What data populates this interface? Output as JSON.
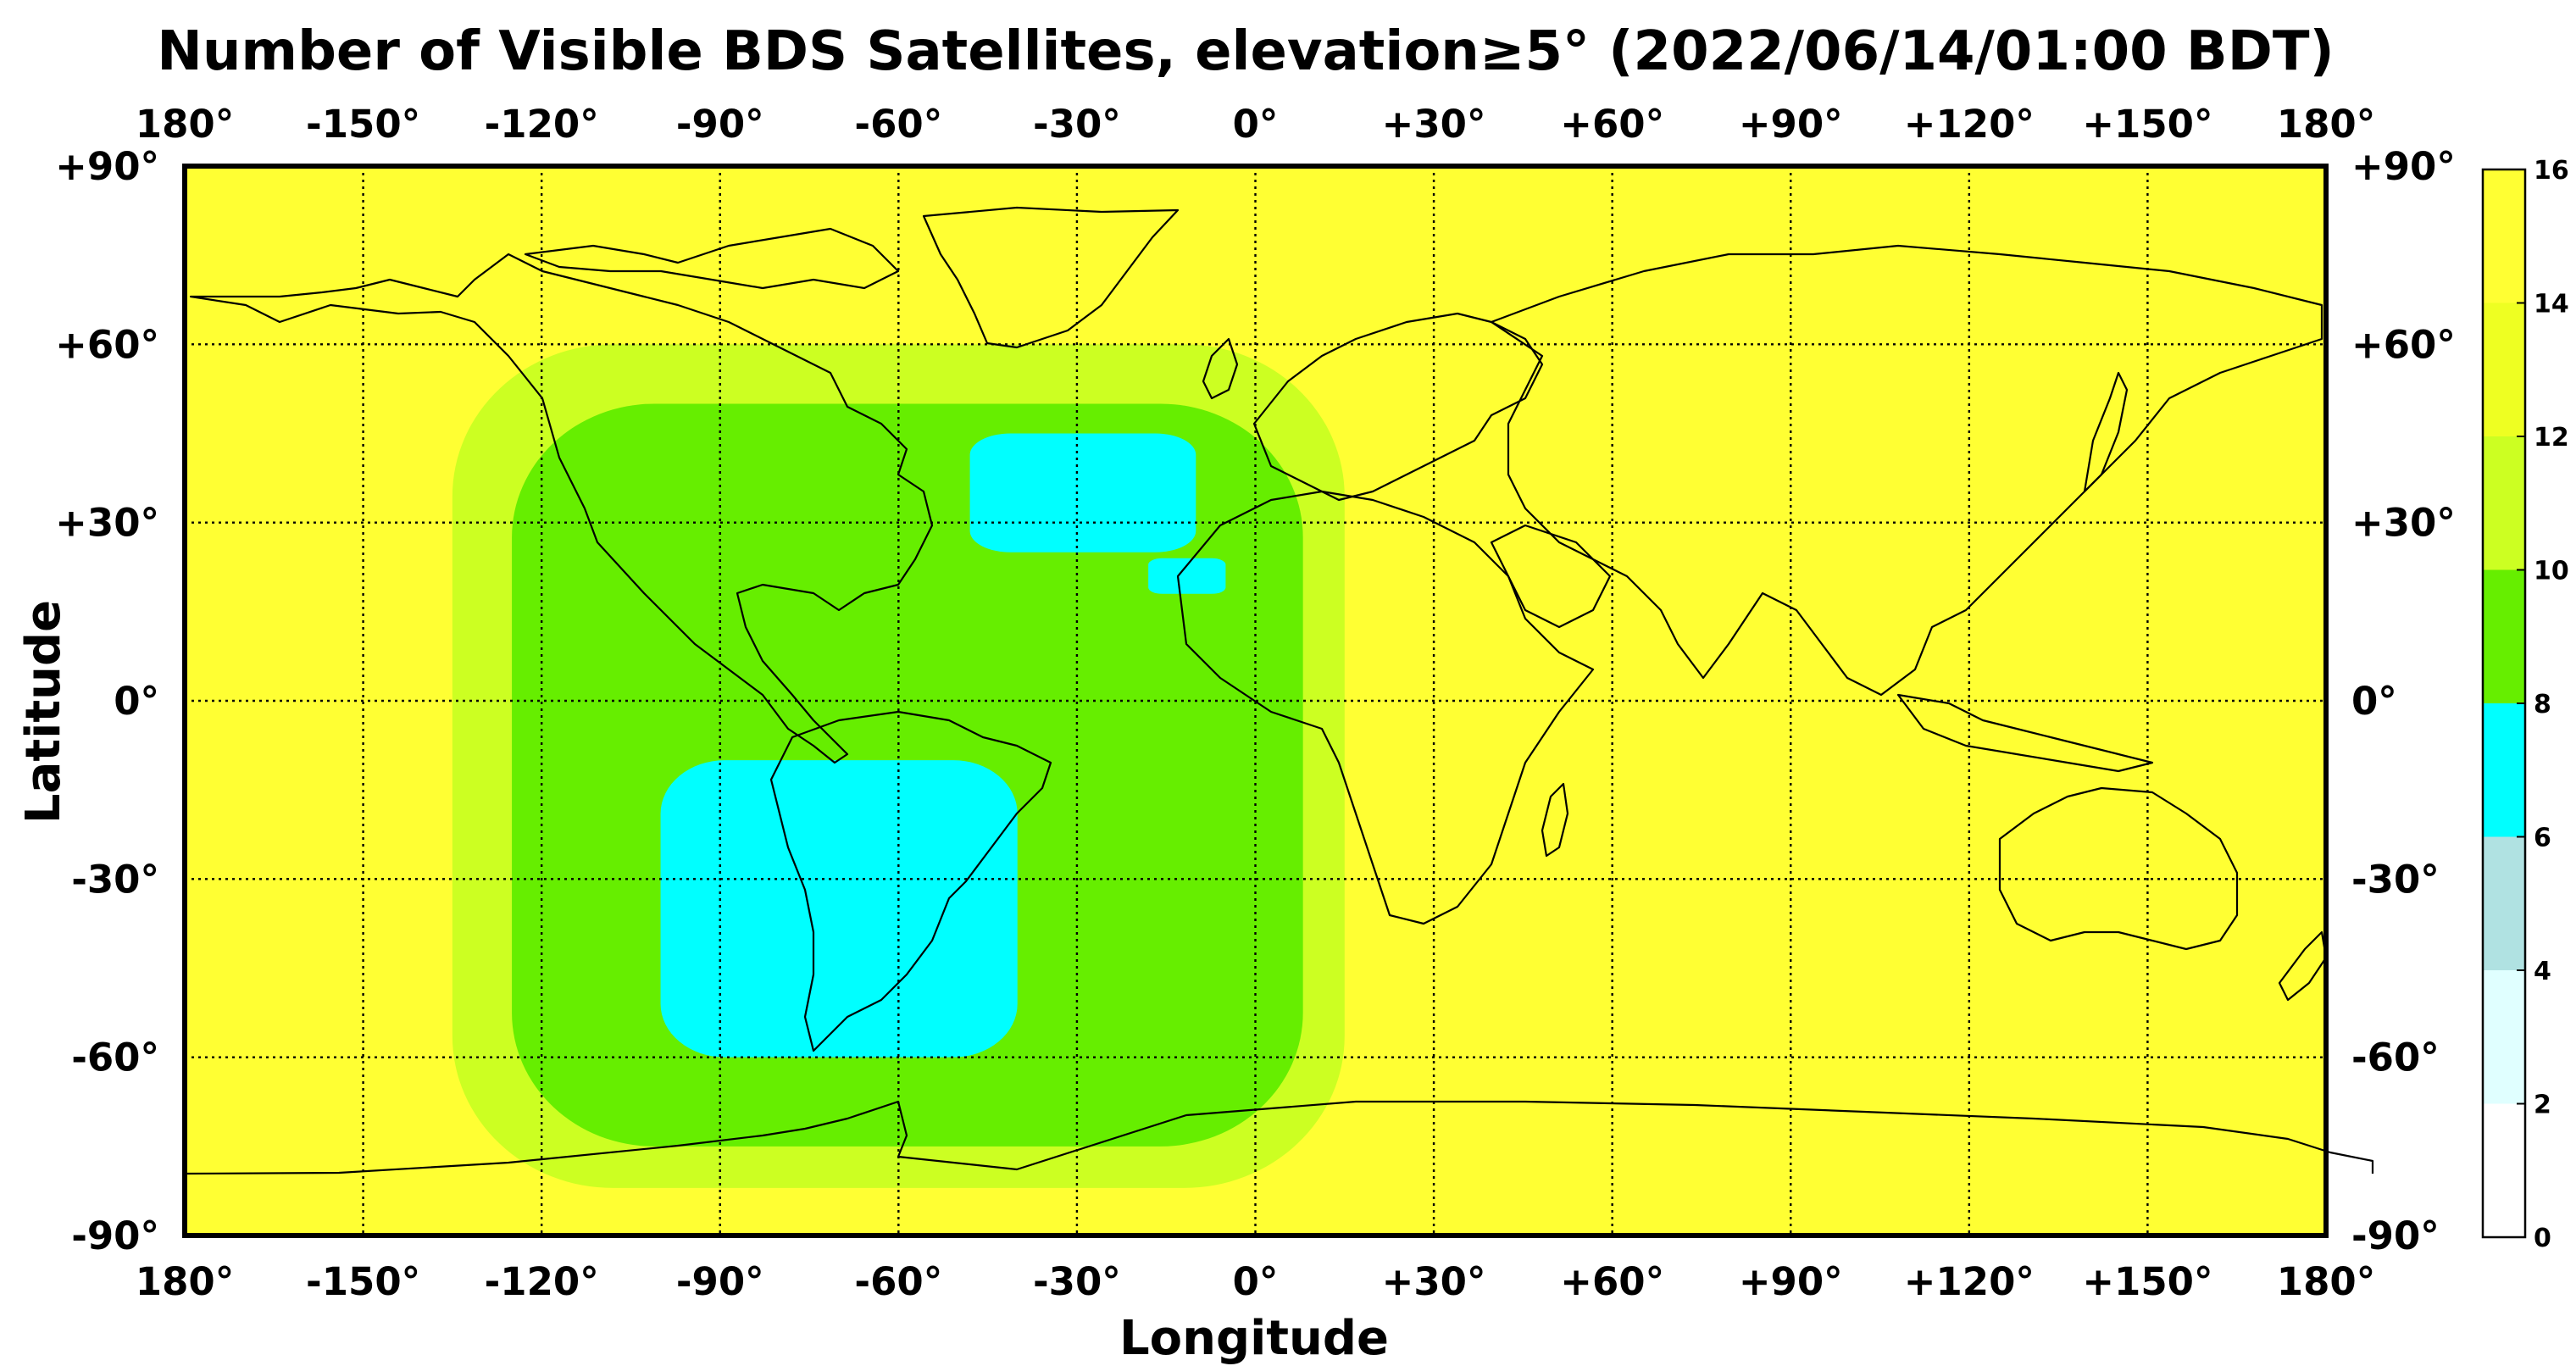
{
  "title": "Number of Visible BDS Satellites, elevation≥5° (2022/06/14/01:00 BDT)",
  "xlabel": "Longitude",
  "ylabel": "Latitude",
  "lon_ticks": [
    "180°",
    "-150°",
    "-120°",
    "-90°",
    "-60°",
    "-30°",
    "0°",
    "+30°",
    "+60°",
    "+90°",
    "+120°",
    "+150°",
    "180°"
  ],
  "lat_ticks": [
    "+90°",
    "+60°",
    "+30°",
    "0°",
    "-30°",
    "-60°",
    "-90°"
  ],
  "colorbar": {
    "ticks": [
      "16",
      "14",
      "12",
      "10",
      "8",
      "6",
      "4",
      "2",
      "0"
    ],
    "bands": [
      {
        "from": 0,
        "to": 2,
        "color": "#ffffff"
      },
      {
        "from": 2,
        "to": 4,
        "color": "#e0ffff"
      },
      {
        "from": 4,
        "to": 6,
        "color": "#b0e2e2"
      },
      {
        "from": 6,
        "to": 8,
        "color": "#00ffff"
      },
      {
        "from": 8,
        "to": 10,
        "color": "#66ee00"
      },
      {
        "from": 10,
        "to": 12,
        "color": "#ccff22"
      },
      {
        "from": 12,
        "to": 14,
        "color": "#eeff22"
      },
      {
        "from": 14,
        "to": 16,
        "color": "#ffff33"
      }
    ]
  },
  "chart_data": {
    "type": "heatmap",
    "title": "Number of Visible BDS Satellites, elevation≥5° (2022/06/14/01:00 BDT)",
    "xlabel": "Longitude",
    "ylabel": "Latitude",
    "xlim": [
      -180,
      180
    ],
    "ylim": [
      -90,
      90
    ],
    "grid": true,
    "colorbar_range": [
      0,
      16
    ],
    "regions": [
      {
        "label": "11",
        "lon": [
          -135,
          15
        ],
        "lat": [
          -82,
          60
        ]
      },
      {
        "label": "9",
        "lon": [
          -125,
          8
        ],
        "lat": [
          -75,
          50
        ]
      },
      {
        "label": "7",
        "lon": [
          -48,
          -10
        ],
        "lat": [
          25,
          45
        ]
      },
      {
        "label": "7",
        "lon": [
          -18,
          -5
        ],
        "lat": [
          18,
          24
        ]
      },
      {
        "label": "7",
        "lon": [
          -100,
          -40
        ],
        "lat": [
          -60,
          -10
        ]
      },
      {
        "label": "15",
        "lon": [
          -180,
          180
        ],
        "lat": [
          -90,
          90
        ],
        "note": "background"
      }
    ]
  }
}
